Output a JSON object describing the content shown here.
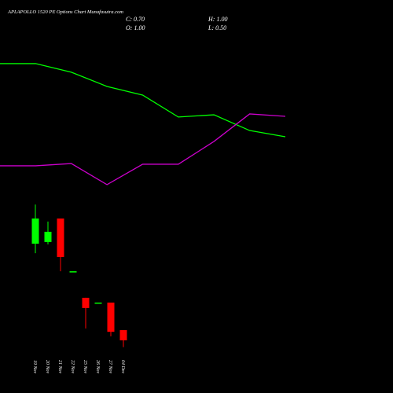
{
  "chart_data": [
    {
      "type": "candlestick",
      "title": "APLAPOLLO 1520 PE Options Chart Munafasutra.com",
      "ohlc_labels": {
        "close": "C: 0.70",
        "high": "H: 1.00",
        "open": "O: 1.00",
        "low": "L: 0.50"
      },
      "categories": [
        "19 Nov",
        "20 Nov",
        "21 Nov",
        "22 Nov",
        "25 Nov",
        "26 Nov",
        "27 Nov",
        "04 Dec"
      ],
      "open": [
        3.54,
        3.59,
        4.28,
        2.73,
        1.95,
        1.81,
        1.81,
        1.0
      ],
      "high": [
        4.69,
        4.19,
        4.28,
        2.73,
        1.95,
        1.81,
        1.81,
        1.0
      ],
      "low": [
        3.26,
        3.52,
        2.73,
        2.73,
        1.05,
        1.81,
        0.82,
        0.5
      ],
      "close": [
        4.28,
        3.89,
        3.15,
        2.73,
        1.65,
        1.81,
        0.95,
        0.7
      ],
      "up_color": "#00ff00",
      "down_color": "#ff0000",
      "flat_color": "#00ff00",
      "ylim": [
        0.4,
        4.8
      ]
    },
    {
      "type": "line",
      "series": [
        {
          "color": "#00ff00",
          "values": [
            81.4,
            81.4,
            76.4,
            68.2,
            63.2,
            50.5,
            51.8,
            42.7,
            39.1
          ]
        },
        {
          "color": "#cc00cc",
          "values": [
            22.3,
            22.3,
            23.6,
            11.4,
            23.2,
            23.2,
            36.4,
            52.3,
            50.9
          ]
        }
      ],
      "ylim": [
        0,
        100
      ]
    }
  ]
}
